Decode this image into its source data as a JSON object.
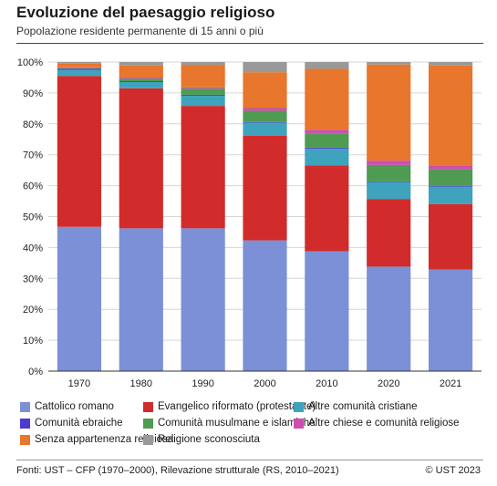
{
  "header": {
    "title": "Evoluzione del paesaggio religioso",
    "subtitle": "Popolazione residente permanente di 15 anni o più"
  },
  "footer": {
    "source": "Fonti: UST – CFP (1970–2000), Rilevazione strutturale (RS, 2010–2021)",
    "copyright": "© UST 2023"
  },
  "chart_data": {
    "type": "bar",
    "stacked": true,
    "categories": [
      "1970",
      "1980",
      "1990",
      "2000",
      "2010",
      "2020",
      "2021"
    ],
    "y_ticks": [
      "0%",
      "10%",
      "20%",
      "30%",
      "40%",
      "50%",
      "60%",
      "70%",
      "80%",
      "90%",
      "100%"
    ],
    "ylim": [
      0,
      100
    ],
    "grid": true,
    "legend_position": "bottom",
    "series": [
      {
        "name": "Cattolico romano",
        "color": "#7b90d6",
        "values": [
          46.7,
          46.2,
          46.2,
          42.3,
          38.8,
          33.8,
          32.9
        ]
      },
      {
        "name": "Evangelico riformato (protestante)",
        "color": "#d22b2b",
        "values": [
          48.8,
          45.3,
          39.6,
          33.9,
          27.8,
          21.8,
          21.1
        ]
      },
      {
        "name": "Altre comunità cristiane",
        "color": "#3fa3bd",
        "values": [
          2.0,
          2.0,
          3.3,
          4.2,
          5.4,
          5.6,
          5.7
        ]
      },
      {
        "name": "Comunità ebraiche",
        "color": "#4b3ccb",
        "values": [
          0.3,
          0.3,
          0.3,
          0.2,
          0.3,
          0.2,
          0.2
        ]
      },
      {
        "name": "Comunità musulmane e islamiche",
        "color": "#4f9b52",
        "values": [
          0.2,
          0.8,
          2.0,
          3.6,
          4.5,
          5.3,
          5.4
        ]
      },
      {
        "name": "Altre chiese e comunità religiose",
        "color": "#cc4faf",
        "values": [
          0.3,
          0.4,
          0.4,
          0.9,
          1.3,
          1.4,
          1.3
        ]
      },
      {
        "name": "Senza appartenenza religiosa",
        "color": "#e8762c",
        "values": [
          1.2,
          3.9,
          7.3,
          11.6,
          19.7,
          31.1,
          32.3
        ]
      },
      {
        "name": "Religione sconosciuta",
        "color": "#999999",
        "values": [
          0.5,
          1.1,
          0.9,
          3.3,
          2.2,
          0.8,
          1.1
        ]
      }
    ]
  }
}
